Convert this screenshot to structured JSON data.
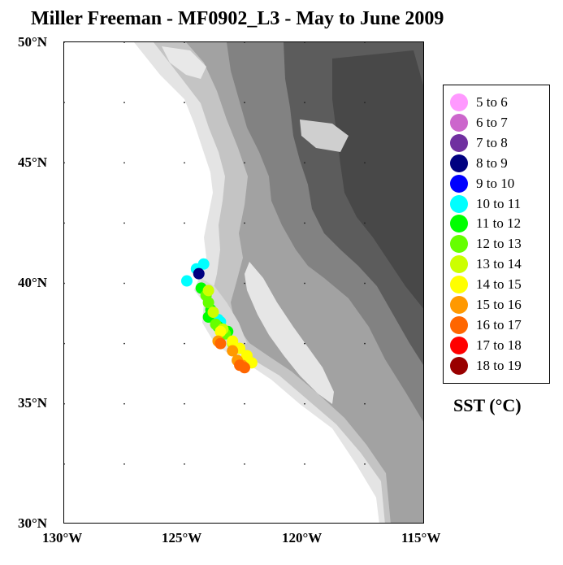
{
  "title": "Miller Freeman - MF0902_L3 - May to June 2009",
  "lat_labels": [
    "50°N",
    "45°N",
    "40°N",
    "35°N",
    "30°N"
  ],
  "lon_labels": [
    "130°W",
    "125°W",
    "120°W",
    "115°W"
  ],
  "legend_title": "SST (°C)",
  "legend": [
    {
      "label": "5  to  6",
      "color": "#ff99ff"
    },
    {
      "label": "6  to  7",
      "color": "#cc66cc"
    },
    {
      "label": "7  to  8",
      "color": "#7030a0"
    },
    {
      "label": "8  to  9",
      "color": "#000080"
    },
    {
      "label": "9  to  10",
      "color": "#0000ff"
    },
    {
      "label": "10  to  11",
      "color": "#00ffff"
    },
    {
      "label": "11  to  12",
      "color": "#00ff00"
    },
    {
      "label": "12  to  13",
      "color": "#66ff00"
    },
    {
      "label": "13  to  14",
      "color": "#ccff00"
    },
    {
      "label": "14  to  15",
      "color": "#ffff00"
    },
    {
      "label": "15  to  16",
      "color": "#ff9900"
    },
    {
      "label": "16  to  17",
      "color": "#ff6600"
    },
    {
      "label": "17  to  18",
      "color": "#ff0000"
    },
    {
      "label": "18  to  19",
      "color": "#990000"
    }
  ],
  "map": {
    "lon_range": [
      -130,
      -115
    ],
    "lat_range": [
      30,
      50
    ],
    "land_shades": [
      "#e8e8e8",
      "#c8c8c8",
      "#a8a8a8",
      "#888888",
      "#686868",
      "#484848"
    ]
  },
  "chart_data": {
    "type": "scatter",
    "title": "Miller Freeman - MF0902_L3 - May to June 2009",
    "xlabel": "",
    "ylabel": "",
    "xlim": [
      -130,
      -115
    ],
    "ylim": [
      30,
      50
    ],
    "series": [
      {
        "name": "10  to  11",
        "x": [
          -124.2,
          -124.5,
          -124.9,
          -123.6,
          -123.5
        ],
        "y": [
          40.8,
          40.6,
          40.1,
          38.5,
          38.4
        ]
      },
      {
        "name": "8  to  9",
        "x": [
          -124.4
        ],
        "y": [
          40.4
        ]
      },
      {
        "name": "11  to  12",
        "x": [
          -124.3,
          -123.9,
          -124.0,
          -123.6,
          -123.2
        ],
        "y": [
          39.8,
          38.9,
          38.6,
          38.2,
          38.0
        ]
      },
      {
        "name": "12  to  13",
        "x": [
          -124.1,
          -124.0,
          -123.7,
          -123.3
        ],
        "y": [
          39.5,
          39.2,
          38.3,
          37.9
        ]
      },
      {
        "name": "13  to  14",
        "x": [
          -124.0,
          -123.8,
          -123.4,
          -123.0
        ],
        "y": [
          39.7,
          38.8,
          38.1,
          37.5
        ]
      },
      {
        "name": "14  to  15",
        "x": [
          -123.5,
          -123.0,
          -122.7,
          -122.4,
          -122.2
        ],
        "y": [
          38.0,
          37.6,
          37.3,
          37.0,
          36.7
        ]
      },
      {
        "name": "15  to  16",
        "x": [
          -123.6,
          -123.0,
          -122.8,
          -122.6
        ],
        "y": [
          37.6,
          37.2,
          36.8,
          36.6
        ]
      },
      {
        "name": "16  to  17",
        "x": [
          -123.5,
          -122.7,
          -122.5
        ],
        "y": [
          37.5,
          36.6,
          36.5
        ]
      }
    ]
  }
}
